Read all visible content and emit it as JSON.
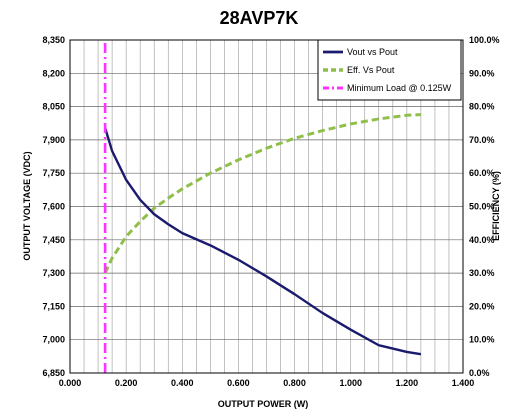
{
  "chart_data": {
    "type": "line",
    "title": "28AVP7K",
    "xlabel": "OUTPUT POWER (W)",
    "ylabel": "OUTPUT VOLTAGE (VDC)",
    "y2label": "EFFICIENCY (%)",
    "xlim": [
      0,
      1.4
    ],
    "ylim": [
      6850,
      8350
    ],
    "y2lim": [
      0,
      100
    ],
    "x_ticks": [
      "0.000",
      "0.200",
      "0.400",
      "0.600",
      "0.800",
      "1.000",
      "1.200",
      "1.400"
    ],
    "x_tick_values": [
      0,
      0.2,
      0.4,
      0.6,
      0.8,
      1.0,
      1.2,
      1.4
    ],
    "y_ticks": [
      "6,850",
      "7,000",
      "7,150",
      "7,300",
      "7,450",
      "7,600",
      "7,750",
      "7,900",
      "8,050",
      "8,200",
      "8,350"
    ],
    "y_tick_values": [
      6850,
      7000,
      7150,
      7300,
      7450,
      7600,
      7750,
      7900,
      8050,
      8200,
      8350
    ],
    "y2_ticks": [
      "0.0%",
      "10.0%",
      "20.0%",
      "30.0%",
      "40.0%",
      "50.0%",
      "60.0%",
      "70.0%",
      "80.0%",
      "90.0%",
      "100.0%"
    ],
    "y2_tick_values": [
      0,
      10,
      20,
      30,
      40,
      50,
      60,
      70,
      80,
      90,
      100
    ],
    "grid": true,
    "legend_position": "top-right",
    "series": [
      {
        "name": "Vout vs Pout",
        "axis": "left",
        "color": "#1a1a6e",
        "style": "solid",
        "x": [
          0.125,
          0.15,
          0.2,
          0.25,
          0.3,
          0.35,
          0.4,
          0.5,
          0.6,
          0.7,
          0.8,
          0.9,
          1.0,
          1.1,
          1.2,
          1.25
        ],
        "y": [
          7955,
          7850,
          7720,
          7630,
          7565,
          7520,
          7480,
          7425,
          7360,
          7285,
          7205,
          7120,
          7045,
          6975,
          6945,
          6935
        ]
      },
      {
        "name": "Eff. Vs Pout",
        "axis": "right",
        "color": "#8fbf4a",
        "style": "dashed",
        "x": [
          0.125,
          0.15,
          0.2,
          0.25,
          0.3,
          0.35,
          0.4,
          0.5,
          0.6,
          0.7,
          0.8,
          0.9,
          1.0,
          1.1,
          1.2,
          1.25
        ],
        "y": [
          30,
          34.5,
          41,
          45.5,
          49.5,
          52.5,
          55.3,
          60,
          64,
          67.5,
          70.5,
          72.8,
          74.8,
          76.3,
          77.4,
          77.6
        ]
      },
      {
        "name": "Minimum Load @ 0.125W",
        "axis": "left",
        "color": "#ff33ff",
        "style": "dash-dot",
        "x": [
          0.125,
          0.125
        ],
        "y": [
          6850,
          8350
        ]
      }
    ]
  }
}
